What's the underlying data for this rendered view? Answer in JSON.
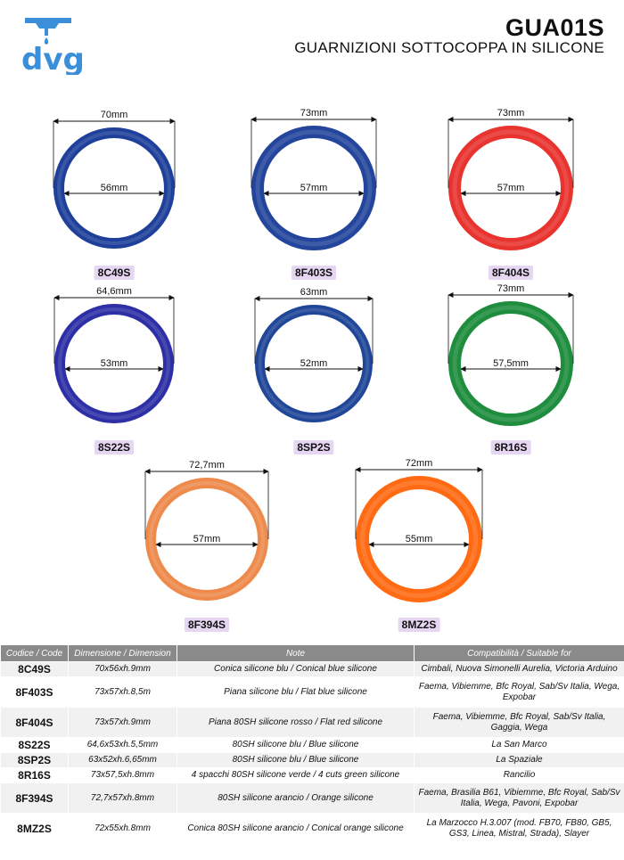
{
  "header": {
    "brand": "dvg",
    "product_code": "GUA01S",
    "product_title": "GUARNIZIONI SOTTOCOPPA IN SILICONE"
  },
  "colors": {
    "brand_blue": "#3a8fd8",
    "ring_blue_dark": "#1e3f9a",
    "ring_blue": "#24459c",
    "ring_red": "#e8332e",
    "ring_indigo": "#2d2fa6",
    "ring_green": "#1e8d3d",
    "ring_orange_light": "#ee8a4c",
    "ring_orange": "#ff6a12",
    "label_bg": "#e6d6f2",
    "table_header_bg": "#8a8a8a"
  },
  "rings": [
    {
      "code": "8C49S",
      "outer": "70mm",
      "inner": "56mm",
      "color": "#1e3f9a"
    },
    {
      "code": "8F403S",
      "outer": "73mm",
      "inner": "57mm",
      "color": "#24459c"
    },
    {
      "code": "8F404S",
      "outer": "73mm",
      "inner": "57mm",
      "color": "#e8332e"
    },
    {
      "code": "8S22S",
      "outer": "64,6mm",
      "inner": "53mm",
      "color": "#2d2fa6"
    },
    {
      "code": "8SP2S",
      "outer": "63mm",
      "inner": "52mm",
      "color": "#1f4698"
    },
    {
      "code": "8R16S",
      "outer": "73mm",
      "inner": "57,5mm",
      "color": "#1e8d3d"
    },
    {
      "code": "8F394S",
      "outer": "72,7mm",
      "inner": "57mm",
      "color": "#ee8a4c"
    },
    {
      "code": "8MZ2S",
      "outer": "72mm",
      "inner": "55mm",
      "color": "#ff6a12"
    }
  ],
  "table": {
    "headers": [
      "Codice / Code",
      "Dimensione / Dimension",
      "Note",
      "Compatibilità / Suitable for"
    ],
    "rows": [
      {
        "code": "8C49S",
        "dimension": "70x56xh.9mm",
        "note": "Conica silicone blu / Conical blue silicone",
        "compat": "Cimbali, Nuova Simonelli Aurelia, Victoria Arduino"
      },
      {
        "code": "8F403S",
        "dimension": "73x57xh.8,5m",
        "note": "Piana silicone blu / Flat blue silicone",
        "compat": "Faema, Vibiemme, Bfc Royal, Sab/Sv Italia, Wega, Expobar"
      },
      {
        "code": "8F404S",
        "dimension": "73x57xh.9mm",
        "note": "Piana 80SH silicone rosso / Flat red silicone",
        "compat": "Faema, Vibiemme, Bfc Royal, Sab/Sv Italia, Gaggia, Wega"
      },
      {
        "code": "8S22S",
        "dimension": "64,6x53xh.5,5mm",
        "note": "80SH silicone blu / Blue silicone",
        "compat": "La San Marco"
      },
      {
        "code": "8SP2S",
        "dimension": "63x52xh.6,65mm",
        "note": "80SH silicone blu / Blue silicone",
        "compat": "La Spaziale"
      },
      {
        "code": "8R16S",
        "dimension": "73x57,5xh.8mm",
        "note": "4 spacchi 80SH silicone verde / 4 cuts green silicone",
        "compat": "Rancilio"
      },
      {
        "code": "8F394S",
        "dimension": "72,7x57xh.8mm",
        "note": "80SH silicone arancio / Orange silicone",
        "compat": "Faema, Brasilia B61, Vibiemme, Bfc Royal, Sab/Sv Italia, Wega, Pavoni, Expobar"
      },
      {
        "code": "8MZ2S",
        "dimension": "72x55xh.8mm",
        "note": "Conica 80SH silicone arancio / Conical orange silicone",
        "compat": "La Marzocco H.3.007 (mod. FB70, FB80, GB5, GS3, Linea, Mistral, Strada), Slayer"
      }
    ]
  }
}
